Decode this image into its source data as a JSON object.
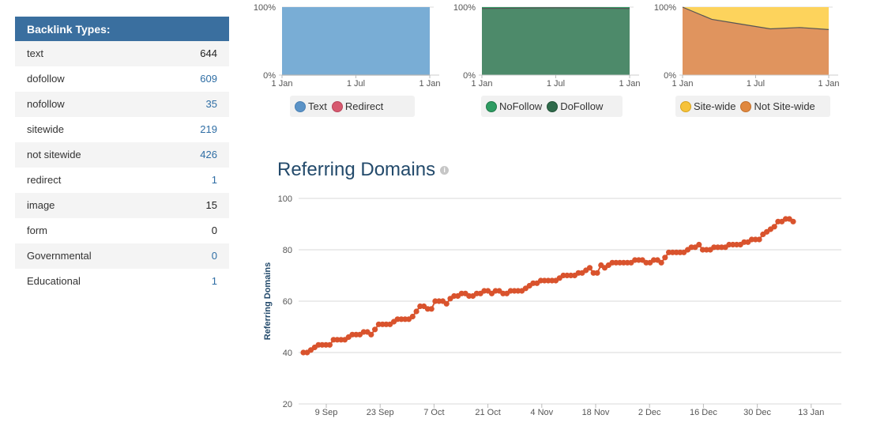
{
  "backlink_panel": {
    "title": "Backlink Types:",
    "rows": [
      {
        "label": "text",
        "value": "644",
        "link": false
      },
      {
        "label": "dofollow",
        "value": "609",
        "link": true
      },
      {
        "label": "nofollow",
        "value": "35",
        "link": true
      },
      {
        "label": "sitewide",
        "value": "219",
        "link": true
      },
      {
        "label": "not sitewide",
        "value": "426",
        "link": true
      },
      {
        "label": "redirect",
        "value": "1",
        "link": true
      },
      {
        "label": "image",
        "value": "15",
        "link": false
      },
      {
        "label": "form",
        "value": "0",
        "link": false
      },
      {
        "label": "Governmental",
        "value": "0",
        "link": true
      },
      {
        "label": "Educational",
        "value": "1",
        "link": true
      }
    ]
  },
  "chart_data": [
    {
      "type": "area",
      "x_ticks": [
        "1 Jan",
        "1 Jul",
        "1 Jan"
      ],
      "y_ticks": [
        "0%",
        "100%"
      ],
      "series": [
        {
          "name": "Text",
          "color": "#79add5",
          "share_pct": [
            100,
            100,
            100
          ]
        },
        {
          "name": "Redirect",
          "color": "#d75a70",
          "share_pct": [
            0,
            0,
            0
          ]
        }
      ],
      "legend": "bottom"
    },
    {
      "type": "area",
      "x_ticks": [
        "1 Jan",
        "1 Jul",
        "1 Jan"
      ],
      "y_ticks": [
        "0%",
        "100%"
      ],
      "series": [
        {
          "name": "NoFollow",
          "color": "#2e9c62",
          "share_pct": [
            2,
            1,
            2
          ]
        },
        {
          "name": "DoFollow",
          "color": "#4d8a6a",
          "share_pct": [
            98,
            99,
            98
          ]
        }
      ],
      "legend": "bottom"
    },
    {
      "type": "area",
      "x_ticks": [
        "1 Jan",
        "1 Jul",
        "1 Jan"
      ],
      "y_ticks": [
        "0%",
        "100%"
      ],
      "series": [
        {
          "name": "Site-wide",
          "color": "#fdd35c",
          "share_pct": [
            0,
            18,
            25,
            32,
            30,
            33
          ]
        },
        {
          "name": "Not Site-wide",
          "color": "#e0945e",
          "share_pct": [
            100,
            82,
            75,
            68,
            70,
            67
          ]
        }
      ],
      "legend": "bottom"
    },
    {
      "type": "scatter",
      "title": "Referring Domains",
      "ylabel": "Referring Domains",
      "ylim": [
        20,
        100
      ],
      "y_ticks": [
        20,
        40,
        60,
        80,
        100
      ],
      "x_ticks": [
        "9 Sep",
        "23 Sep",
        "7 Oct",
        "21 Oct",
        "4 Nov",
        "18 Nov",
        "2 Dec",
        "16 Dec",
        "30 Dec",
        "13 Jan"
      ],
      "color": "#d9532d",
      "values": [
        40,
        40,
        41,
        42,
        43,
        43,
        43,
        43,
        45,
        45,
        45,
        45,
        46,
        47,
        47,
        47,
        48,
        48,
        47,
        49,
        51,
        51,
        51,
        51,
        52,
        53,
        53,
        53,
        53,
        54,
        56,
        58,
        58,
        57,
        57,
        60,
        60,
        60,
        59,
        61,
        62,
        62,
        63,
        63,
        62,
        62,
        63,
        63,
        64,
        64,
        63,
        64,
        64,
        63,
        63,
        64,
        64,
        64,
        64,
        65,
        66,
        67,
        67,
        68,
        68,
        68,
        68,
        68,
        69,
        70,
        70,
        70,
        70,
        71,
        71,
        72,
        73,
        71,
        71,
        74,
        73,
        74,
        75,
        75,
        75,
        75,
        75,
        75,
        76,
        76,
        76,
        75,
        75,
        76,
        76,
        75,
        77,
        79,
        79,
        79,
        79,
        79,
        80,
        81,
        81,
        82,
        80,
        80,
        80,
        81,
        81,
        81,
        81,
        82,
        82,
        82,
        82,
        83,
        83,
        84,
        84,
        84,
        86,
        87,
        88,
        89,
        91,
        91,
        92,
        92,
        91
      ]
    }
  ]
}
